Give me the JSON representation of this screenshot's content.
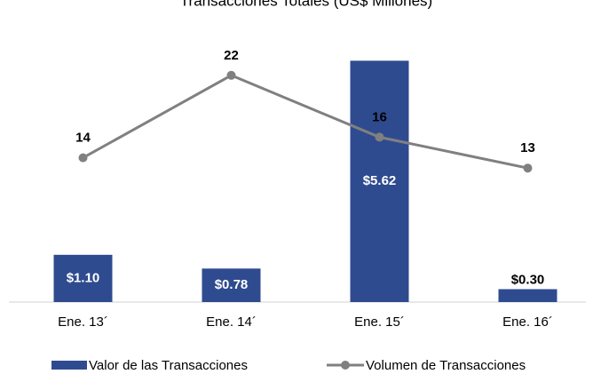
{
  "chart_data": {
    "type": "bar-line",
    "title": "Transacciones Totales (US$ Millones)",
    "categories": [
      "Ene. 13´",
      "Ene. 14´",
      "Ene. 15´",
      "Ene. 16´"
    ],
    "series": [
      {
        "name": "Valor de las Transacciones",
        "type": "bar",
        "color": "#2f4b8f",
        "values": [
          1.1,
          0.78,
          5.62,
          0.3
        ],
        "value_labels": [
          "$1.10",
          "$0.78",
          "$5.62",
          "$0.30"
        ]
      },
      {
        "name": "Volumen de Transacciones",
        "type": "line",
        "axis": "y2",
        "color": "#808080",
        "values": [
          14,
          22,
          16,
          13
        ]
      }
    ],
    "ylim": [
      0,
      6
    ],
    "y2lim": [
      0,
      25
    ]
  }
}
